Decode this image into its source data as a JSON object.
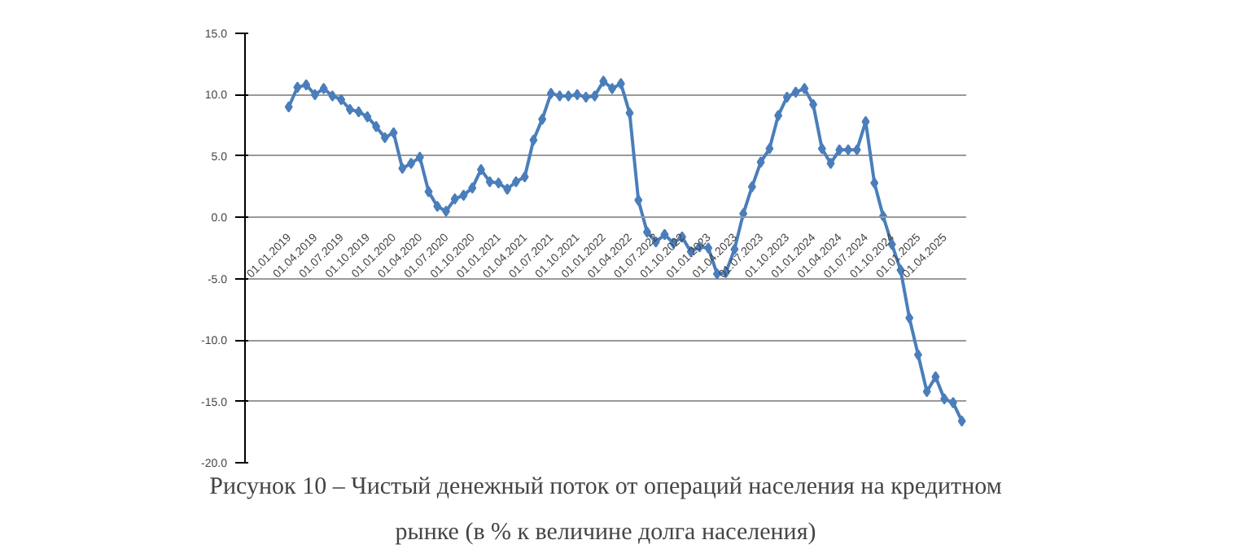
{
  "chart_data": {
    "type": "line",
    "title": "Рисунок 10 – Чистый денежный поток от операций населения на кредитном рынке (в % к величине долга населения)",
    "categories": [
      "01.01.2019",
      null,
      null,
      "01.04.2019",
      null,
      null,
      "01.07.2019",
      null,
      null,
      "01.10.2019",
      null,
      null,
      "01.01.2020",
      null,
      null,
      "01.04.2020",
      null,
      null,
      "01.07.2020",
      null,
      null,
      "01.10.2020",
      null,
      null,
      "01.01.2021",
      null,
      null,
      "01.04.2021",
      null,
      null,
      "01.07.2021",
      null,
      null,
      "01.10.2021",
      null,
      null,
      "01.01.2022",
      null,
      null,
      "01.04.2022",
      null,
      null,
      "01.07.2022",
      null,
      null,
      "01.10.2022",
      null,
      null,
      "01.01.2023",
      null,
      null,
      "01.04.2023",
      null,
      null,
      "01.07.2023",
      null,
      null,
      "01.10.2023",
      null,
      null,
      "01.01.2024",
      null,
      null,
      "01.04.2024",
      null,
      null,
      "01.07.2024",
      null,
      null,
      "01.10.2024",
      null,
      null,
      "01.01.2025",
      null,
      null,
      "01.04.2025",
      null,
      null
    ],
    "series": [
      {
        "color": "#4a7ebb",
        "values": [
          9.0,
          10.6,
          10.8,
          10.0,
          10.5,
          9.9,
          9.6,
          8.8,
          8.6,
          8.2,
          7.4,
          6.5,
          6.9,
          4.0,
          4.4,
          4.9,
          2.1,
          0.9,
          0.5,
          1.5,
          1.8,
          2.4,
          3.9,
          2.9,
          2.8,
          2.3,
          2.9,
          3.3,
          6.3,
          8.0,
          10.1,
          9.9,
          9.9,
          10.0,
          9.8,
          9.9,
          11.1,
          10.5,
          10.9,
          8.5,
          1.4,
          -1.2,
          -2.0,
          -1.4,
          -2.1,
          -1.6,
          -2.8,
          -2.4,
          -2.5,
          -4.6,
          -4.5,
          -2.6,
          0.3,
          2.5,
          4.5,
          5.6,
          8.3,
          9.8,
          10.2,
          10.5,
          9.2,
          5.6,
          4.4,
          5.5,
          5.5,
          5.5,
          7.8,
          2.8,
          0.1,
          -2.2,
          -4.3,
          -8.2,
          -11.2,
          -14.2,
          -13.0,
          -14.8,
          -15.1,
          -16.6
        ]
      }
    ],
    "ylim": [
      -20,
      15
    ],
    "yticks": [
      {
        "value": -20,
        "label": "-20.0"
      },
      {
        "value": -15,
        "label": "-15.0"
      },
      {
        "value": -10,
        "label": "-10.0"
      },
      {
        "value": -5,
        "label": "-5.0"
      },
      {
        "value": 0,
        "label": "0.0"
      },
      {
        "value": 5,
        "label": "5.0"
      },
      {
        "value": 10,
        "label": "10.0"
      },
      {
        "value": 15,
        "label": "15.0"
      }
    ],
    "grid": "y",
    "marker": "diamond",
    "line_style": "solid"
  }
}
